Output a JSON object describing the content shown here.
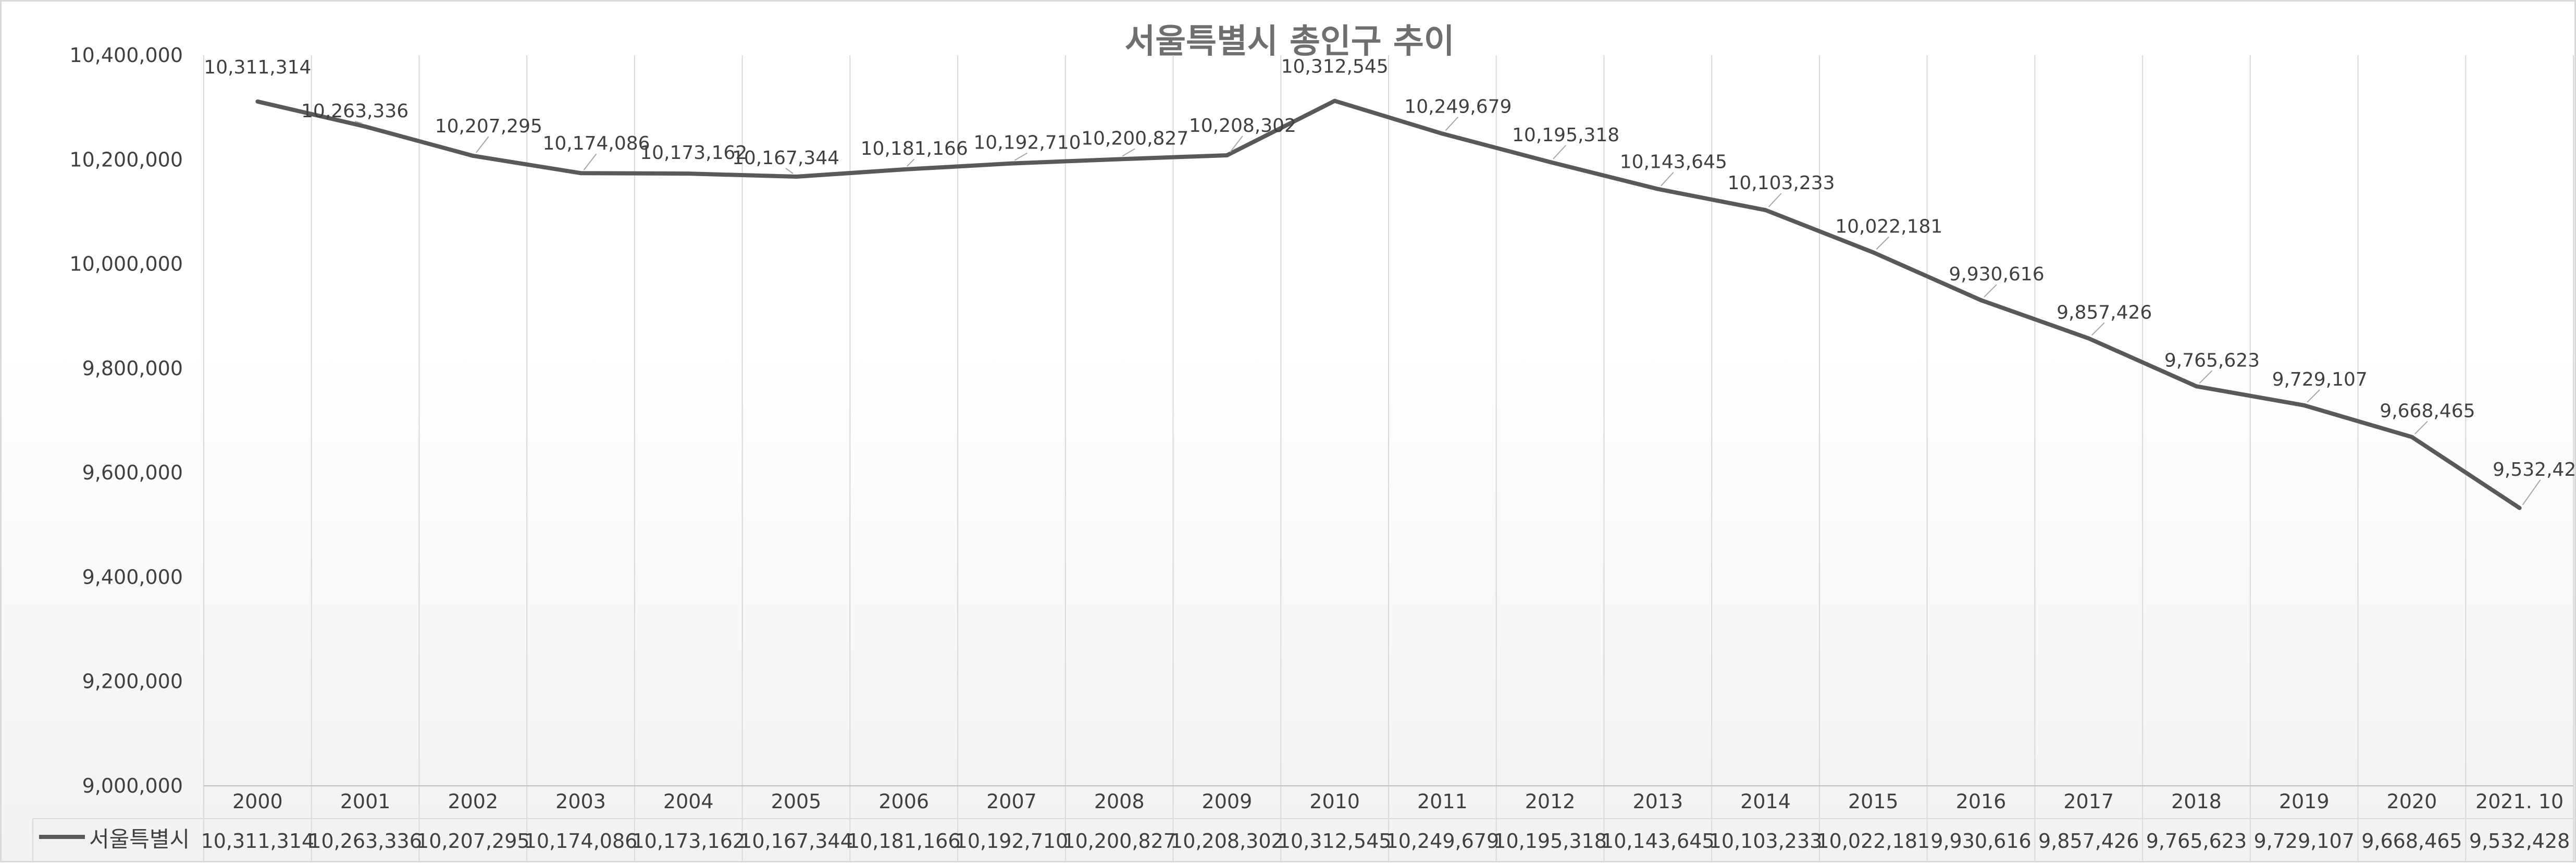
{
  "chart_data": {
    "type": "line",
    "title": "서울특별시 총인구 추이",
    "categories": [
      "2000",
      "2001",
      "2002",
      "2003",
      "2004",
      "2005",
      "2006",
      "2007",
      "2008",
      "2009",
      "2010",
      "2011",
      "2012",
      "2013",
      "2014",
      "2015",
      "2016",
      "2017",
      "2018",
      "2019",
      "2020",
      "2021. 10"
    ],
    "series": [
      {
        "name": "서울특별시",
        "color": "#595959",
        "values": [
          10311314,
          10263336,
          10207295,
          10174086,
          10173162,
          10167344,
          10181166,
          10192710,
          10200827,
          10208302,
          10312545,
          10249679,
          10195318,
          10143645,
          10103233,
          10022181,
          9930616,
          9857426,
          9765623,
          9729107,
          9668465,
          9532428
        ],
        "labels": [
          "10,311,314",
          "10,263,336",
          "10,207,295",
          "10,174,086",
          "10,173,162",
          "10,167,344",
          "10,181,166",
          "10,192,710",
          "10,200,827",
          "10,208,302",
          "10,312,545",
          "10,249,679",
          "10,195,318",
          "10,143,645",
          "10,103,233",
          "10,022,181",
          "9,930,616",
          "9,857,426",
          "9,765,623",
          "9,729,107",
          "9,668,465",
          "9,532,428"
        ]
      }
    ],
    "ylim": [
      9000000,
      10400000
    ],
    "yticks": [
      9000000,
      9200000,
      9400000,
      9600000,
      9800000,
      10000000,
      10200000,
      10400000
    ],
    "ytick_labels": [
      "9,000,000",
      "9,200,000",
      "9,400,000",
      "9,600,000",
      "9,800,000",
      "10,000,000",
      "10,200,000",
      "10,400,000"
    ],
    "grid": "vertical",
    "legend": "data-table",
    "data_table": true
  }
}
